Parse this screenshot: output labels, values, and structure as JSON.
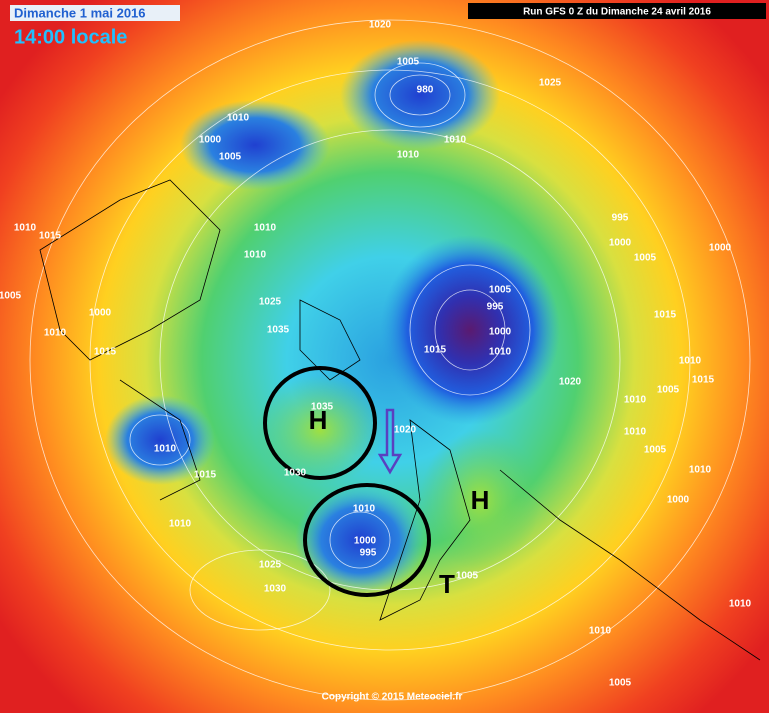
{
  "header": {
    "date": "Dimanche 1 mai 2016",
    "time": "14:00 locale",
    "run": "Run GFS 0 Z du Dimanche 24 avril 2016"
  },
  "footer": {
    "copyright": "Copyright © 2015 Meteociel.fr"
  },
  "annotations": {
    "high_1": "H",
    "high_2": "H",
    "low": "T"
  },
  "pressure_labels": [
    "1020",
    "1005",
    "980",
    "1025",
    "1010",
    "1000",
    "1005",
    "1010",
    "1010",
    "995",
    "1000",
    "1005",
    "1000",
    "1010",
    "1015",
    "1005",
    "1010",
    "1010",
    "1025",
    "1035",
    "1005",
    "995",
    "1000",
    "1010",
    "1015",
    "1020",
    "1015",
    "1000",
    "1010",
    "1015",
    "1035",
    "1020",
    "1010",
    "1015",
    "1030",
    "1010",
    "1000",
    "995",
    "1010",
    "1025",
    "1030",
    "1005",
    "1010",
    "1005",
    "1010",
    "1000",
    "1010",
    "1010",
    "1005",
    "1010",
    "1015",
    "1005",
    "1010"
  ]
}
